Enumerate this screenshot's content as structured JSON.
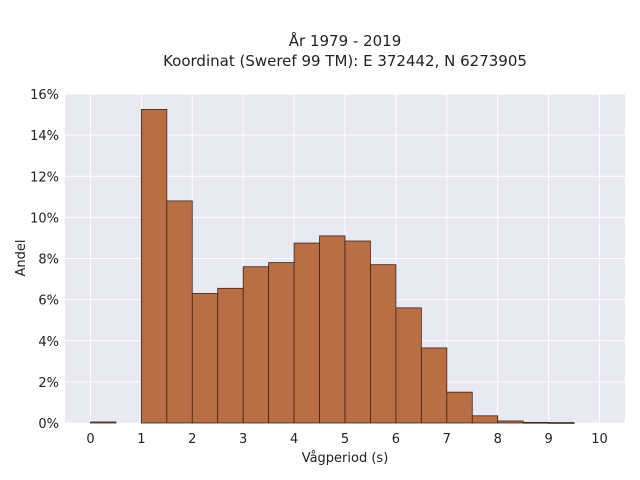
{
  "chart_data": {
    "type": "bar",
    "title_line1": "År 1979 - 2019",
    "title_line2": "Koordinat (Sweref 99 TM): E 372442, N 6273905",
    "xlabel": "Vågperiod (s)",
    "ylabel": "Andel",
    "x_ticks": [
      "0",
      "1",
      "2",
      "3",
      "4",
      "5",
      "6",
      "7",
      "8",
      "9",
      "10"
    ],
    "y_ticks": [
      "0%",
      "2%",
      "4%",
      "6%",
      "8%",
      "10%",
      "12%",
      "14%",
      "16%"
    ],
    "xlim": [
      -0.5,
      10.5
    ],
    "ylim": [
      0,
      16
    ],
    "bin_width": 0.5,
    "bins": [
      {
        "start": 0.0,
        "value": 0.05
      },
      {
        "start": 0.5,
        "value": 0.0
      },
      {
        "start": 1.0,
        "value": 15.25
      },
      {
        "start": 1.5,
        "value": 10.8
      },
      {
        "start": 2.0,
        "value": 6.3
      },
      {
        "start": 2.5,
        "value": 6.55
      },
      {
        "start": 3.0,
        "value": 7.6
      },
      {
        "start": 3.5,
        "value": 7.8
      },
      {
        "start": 4.0,
        "value": 8.75
      },
      {
        "start": 4.5,
        "value": 9.1
      },
      {
        "start": 5.0,
        "value": 8.85
      },
      {
        "start": 5.5,
        "value": 7.7
      },
      {
        "start": 6.0,
        "value": 5.6
      },
      {
        "start": 6.5,
        "value": 3.65
      },
      {
        "start": 7.0,
        "value": 1.5
      },
      {
        "start": 7.5,
        "value": 0.35
      },
      {
        "start": 8.0,
        "value": 0.1
      },
      {
        "start": 8.5,
        "value": 0.03
      },
      {
        "start": 9.0,
        "value": 0.02
      }
    ],
    "grid": true,
    "colors": {
      "bar_fill": "#b86f46",
      "bar_stroke": "#3d2318",
      "plot_bg": "#e9e9f2",
      "grid": "#ffffff"
    }
  }
}
